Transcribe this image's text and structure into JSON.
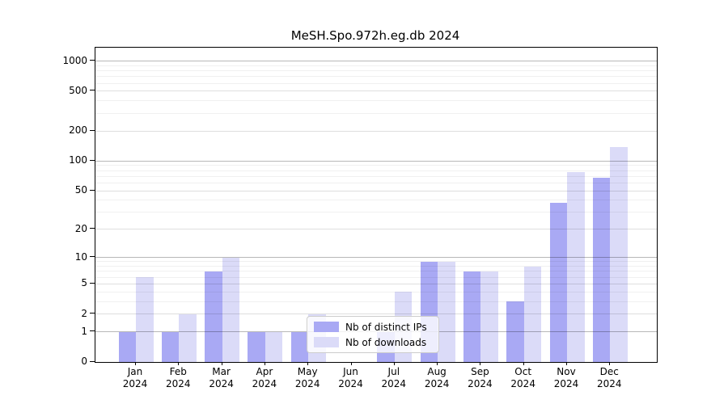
{
  "title": "MeSH.Spo.972h.eg.db 2024",
  "colors": {
    "distinct_ips_bar": "#a9a9f4",
    "downloads_bar": "#dbdbf8"
  },
  "legend": {
    "items": [
      {
        "label": "Nb of distinct IPs",
        "color": "#a9a9f4"
      },
      {
        "label": "Nb of downloads",
        "color": "#dbdbf8"
      }
    ]
  },
  "chart_data": {
    "type": "bar",
    "title": "MeSH.Spo.972h.eg.db 2024",
    "xlabel": "",
    "ylabel": "",
    "yscale": "log10(1+x)",
    "ylim": [
      0,
      1350
    ],
    "grid": "on",
    "legend_position": "bottom-center-inside",
    "ytick_values": [
      0,
      1,
      2,
      5,
      10,
      20,
      50,
      100,
      200,
      500,
      1000
    ],
    "ytick_labels": [
      "0",
      "1",
      "2",
      "5",
      "10",
      "20",
      "50",
      "100",
      "200",
      "500",
      "1000"
    ],
    "categories": [
      "Jan 2024",
      "Feb 2024",
      "Mar 2024",
      "Apr 2024",
      "May 2024",
      "Jun 2024",
      "Jul 2024",
      "Aug 2024",
      "Sep 2024",
      "Oct 2024",
      "Nov 2024",
      "Dec 2024"
    ],
    "month_labels": [
      {
        "month": "Jan",
        "year": "2024"
      },
      {
        "month": "Feb",
        "year": "2024"
      },
      {
        "month": "Mar",
        "year": "2024"
      },
      {
        "month": "Apr",
        "year": "2024"
      },
      {
        "month": "May",
        "year": "2024"
      },
      {
        "month": "Jun",
        "year": "2024"
      },
      {
        "month": "Jul",
        "year": "2024"
      },
      {
        "month": "Aug",
        "year": "2024"
      },
      {
        "month": "Sep",
        "year": "2024"
      },
      {
        "month": "Oct",
        "year": "2024"
      },
      {
        "month": "Nov",
        "year": "2024"
      },
      {
        "month": "Dec",
        "year": "2024"
      }
    ],
    "series": [
      {
        "name": "Nb of distinct IPs",
        "values": [
          1,
          1,
          7,
          1,
          1,
          0,
          1,
          9,
          7,
          3,
          38,
          68
        ]
      },
      {
        "name": "Nb of downloads",
        "values": [
          6,
          2,
          10,
          1,
          2,
          0,
          4,
          9,
          7,
          8,
          78,
          139
        ]
      }
    ]
  }
}
